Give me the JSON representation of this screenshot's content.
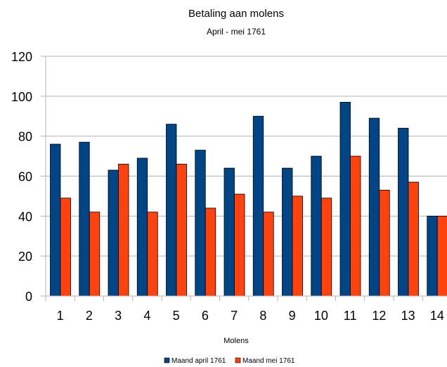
{
  "chart_data": {
    "type": "bar",
    "title": "Betaling aan molens",
    "subtitle": "April - mei 1761",
    "xlabel": "Molens",
    "ylabel": "",
    "categories": [
      "1",
      "2",
      "3",
      "4",
      "5",
      "6",
      "7",
      "8",
      "9",
      "10",
      "11",
      "12",
      "13",
      "14"
    ],
    "ylim": [
      0,
      120
    ],
    "yticks": [
      "0",
      "20",
      "40",
      "60",
      "80",
      "100",
      "120"
    ],
    "grid": true,
    "legend_position": "bottom",
    "series": [
      {
        "name": "Maand april 1761",
        "color": "#004586",
        "values": [
          76,
          77,
          63,
          69,
          86,
          73,
          64,
          90,
          64,
          70,
          97,
          89,
          84,
          40
        ]
      },
      {
        "name": "Maand mei 1761",
        "color": "#ff420e",
        "values": [
          49,
          42,
          66,
          42,
          66,
          44,
          51,
          42,
          50,
          49,
          70,
          53,
          57,
          40
        ]
      }
    ]
  }
}
